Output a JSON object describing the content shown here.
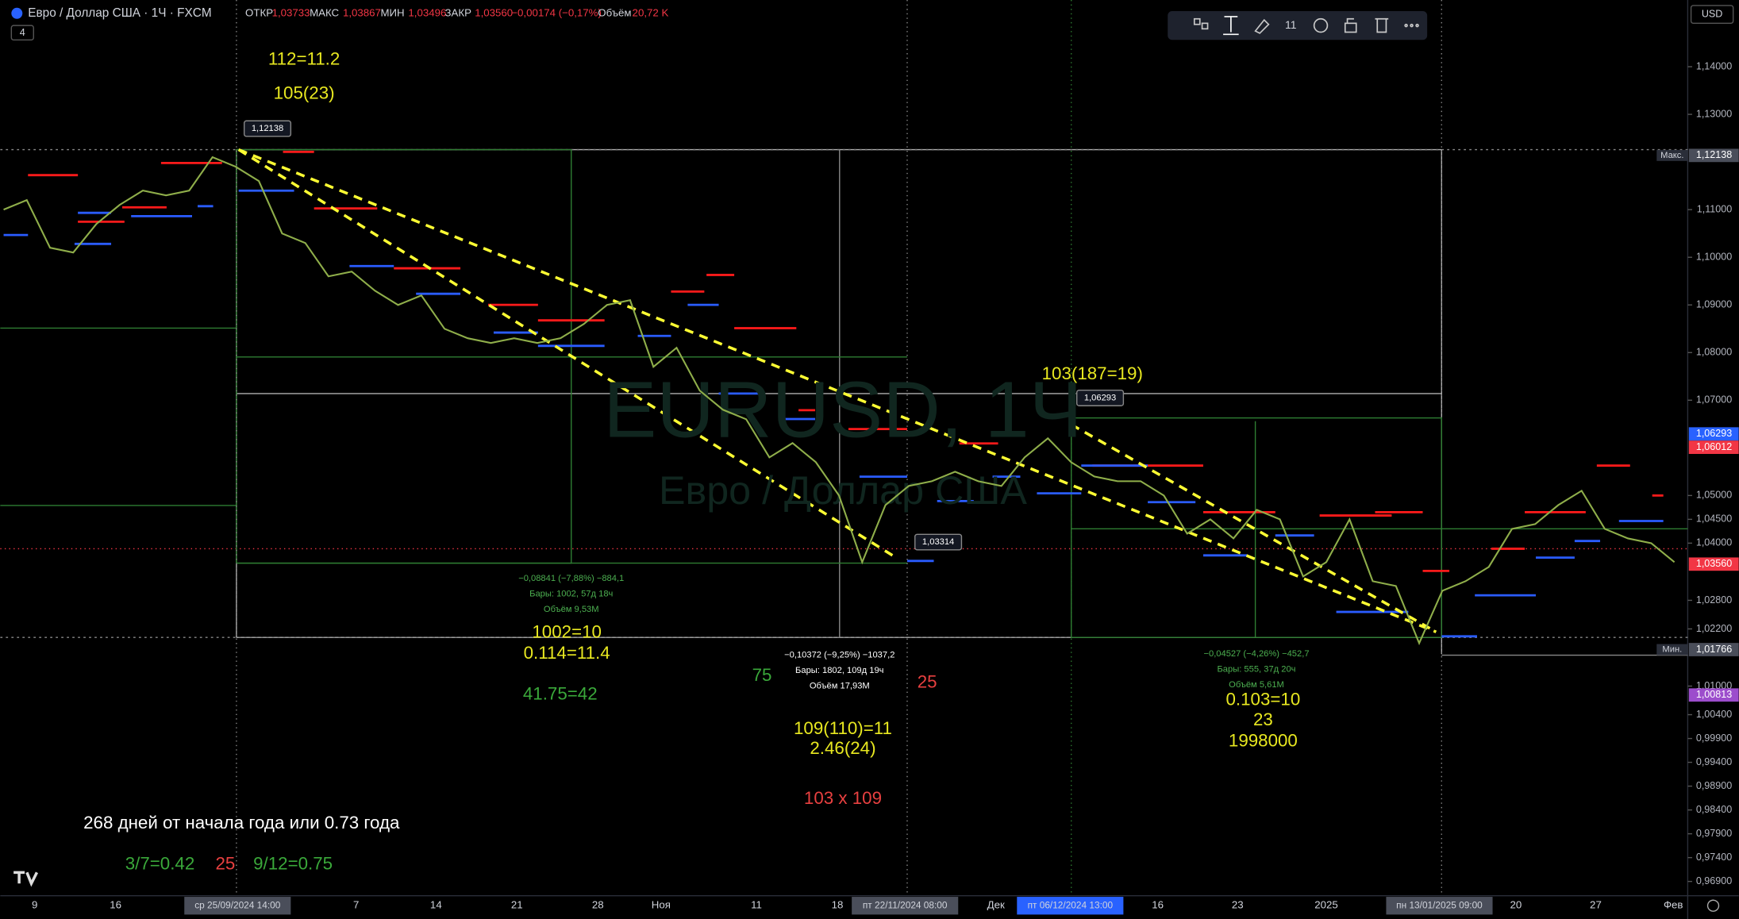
{
  "header": {
    "symbol": "Евро / Доллар США · 1Ч · FXCM",
    "indicator_count": "4",
    "open_label": "ОТКР",
    "open": "1,03733",
    "high_label": "МАКС",
    "high": "1,03867",
    "low_label": "МИН",
    "low": "1,03496",
    "close_label": "ЗАКР",
    "close": "1,03560",
    "change": "−0,00174 (−0,17%)",
    "volume_label": "Объём",
    "volume": "20,72 K"
  },
  "toolbar": {
    "font_size": "11",
    "currency": "USD"
  },
  "watermark": {
    "symbol": "EURUSD, 1Ч",
    "description": "Евро / Доллар США"
  },
  "notes": [
    {
      "text": "112=11.2",
      "color": "#e8e820"
    },
    {
      "text": "105(23)",
      "color": "#e8e820"
    },
    {
      "text": "103(187=19)",
      "color": "#e8e820"
    },
    {
      "text": "1002=10",
      "color": "#e8e820"
    },
    {
      "text": "0.114=11.4",
      "color": "#e8e820"
    },
    {
      "text": "41.75=42",
      "color": "#3aa83a"
    },
    {
      "text": "75",
      "color": "#3aa83a"
    },
    {
      "text": "25",
      "color": "#e84040"
    },
    {
      "text": "109(110)=11",
      "color": "#e8e820"
    },
    {
      "text": "2.46(24)",
      "color": "#e8e820"
    },
    {
      "text": "103 x 109",
      "color": "#e84040"
    },
    {
      "text": "0.103=10",
      "color": "#e8e820"
    },
    {
      "text": "23",
      "color": "#e8e820"
    },
    {
      "text": "1998000",
      "color": "#e8e820"
    },
    {
      "text": "268 дней от начала года или 0.73 года",
      "color": "#ffffff"
    },
    {
      "text": "3/7=0.42",
      "color": "#3aa83a"
    },
    {
      "text": "25",
      "color": "#e84040"
    },
    {
      "text": "9/12=0.75",
      "color": "#3aa83a"
    }
  ],
  "measures": [
    {
      "change": "−0,08841 (−7,88%) −884,1",
      "bars": "Бары: 1002, 57д 18ч",
      "volume": "Объём 9,53M",
      "color": "#4caf50"
    },
    {
      "change": "−0,10372 (−9,25%) −1037,2",
      "bars": "Бары: 1802, 109д 19ч",
      "volume": "Объём 17,93M",
      "color": "#ffffff"
    },
    {
      "change": "−0,04527 (−4,26%) −452,7",
      "bars": "Бары: 555, 37д 20ч",
      "volume": "Объём 5,61M",
      "color": "#4caf50"
    }
  ],
  "callouts": [
    "1,12138",
    "1,06293",
    "1,03314"
  ],
  "x_axis": [
    {
      "label": "9"
    },
    {
      "label": "16"
    },
    {
      "label": "ср 25/09/2024   14:00",
      "highlight": "#4a4e5a"
    },
    {
      "label": "7"
    },
    {
      "label": "14"
    },
    {
      "label": "21"
    },
    {
      "label": "28"
    },
    {
      "label": "Ноя"
    },
    {
      "label": "11"
    },
    {
      "label": "18"
    },
    {
      "label": "пт 22/11/2024   08:00",
      "highlight": "#4a4e5a"
    },
    {
      "label": "Дек"
    },
    {
      "label": "пт 06/12/2024   13:00",
      "highlight": "#2962ff"
    },
    {
      "label": "16"
    },
    {
      "label": "23"
    },
    {
      "label": "2025"
    },
    {
      "label": "пн 13/01/2025   09:00",
      "highlight": "#4a4e5a"
    },
    {
      "label": "20"
    },
    {
      "label": "27"
    },
    {
      "label": "Фев"
    }
  ],
  "chart_data": {
    "type": "line",
    "color": "#8fae4a",
    "values": [
      1.11,
      1.112,
      1.102,
      1.101,
      1.107,
      1.111,
      1.114,
      1.113,
      1.114,
      1.121,
      1.119,
      1.116,
      1.105,
      1.103,
      1.096,
      1.097,
      1.093,
      1.09,
      1.092,
      1.085,
      1.083,
      1.082,
      1.083,
      1.082,
      1.083,
      1.086,
      1.09,
      1.091,
      1.077,
      1.081,
      1.072,
      1.068,
      1.066,
      1.058,
      1.061,
      1.057,
      1.05,
      1.036,
      1.048,
      1.052,
      1.053,
      1.055,
      1.053,
      1.052,
      1.058,
      1.062,
      1.057,
      1.054,
      1.053,
      1.053,
      1.05,
      1.042,
      1.045,
      1.041,
      1.047,
      1.045,
      1.033,
      1.036,
      1.045,
      1.032,
      1.031,
      1.019,
      1.03,
      1.032,
      1.035,
      1.043,
      1.044,
      1.048,
      1.051,
      1.043,
      1.041,
      1.04,
      1.036
    ],
    "ylim": [
      0.966,
      1.154
    ],
    "yticks": [
      {
        "value": 1.14,
        "label": "1,14000"
      },
      {
        "value": 1.13,
        "label": "1,13000"
      },
      {
        "value": 1.11,
        "label": "1,11000"
      },
      {
        "value": 1.1,
        "label": "1,10000"
      },
      {
        "value": 1.09,
        "label": "1,09000"
      },
      {
        "value": 1.08,
        "label": "1,08000"
      },
      {
        "value": 1.07,
        "label": "1,07000"
      },
      {
        "value": 1.05,
        "label": "1,05000"
      },
      {
        "value": 1.045,
        "label": "1,04500"
      },
      {
        "value": 1.04,
        "label": "1,04000"
      },
      {
        "value": 1.028,
        "label": "1,02800"
      },
      {
        "value": 1.022,
        "label": "1,02200"
      },
      {
        "value": 1.01,
        "label": "1,01000"
      },
      {
        "value": 1.004,
        "label": "1,00400"
      },
      {
        "value": 0.999,
        "label": "0,99900"
      },
      {
        "value": 0.994,
        "label": "0,99400"
      },
      {
        "value": 0.989,
        "label": "0,98900"
      },
      {
        "value": 0.984,
        "label": "0,98400"
      },
      {
        "value": 0.979,
        "label": "0,97900"
      },
      {
        "value": 0.974,
        "label": "0,97400"
      },
      {
        "value": 0.969,
        "label": "0,96900"
      }
    ],
    "price_labels": [
      {
        "value": 1.12138,
        "label": "1,12138",
        "tag": "Макс.",
        "color": "#4a4e5a"
      },
      {
        "value": 1.06293,
        "label": "1,06293",
        "color": "#2962ff"
      },
      {
        "value": 1.06012,
        "label": "1,06012",
        "color": "#f23645"
      },
      {
        "value": 1.0356,
        "label": "1,03560",
        "color": "#f23645"
      },
      {
        "value": 1.01766,
        "label": "1,01766",
        "tag": "Мин.",
        "color": "#4a4e5a"
      },
      {
        "value": 1.00813,
        "label": "1,00813",
        "color": "#9c4dcc"
      }
    ]
  }
}
